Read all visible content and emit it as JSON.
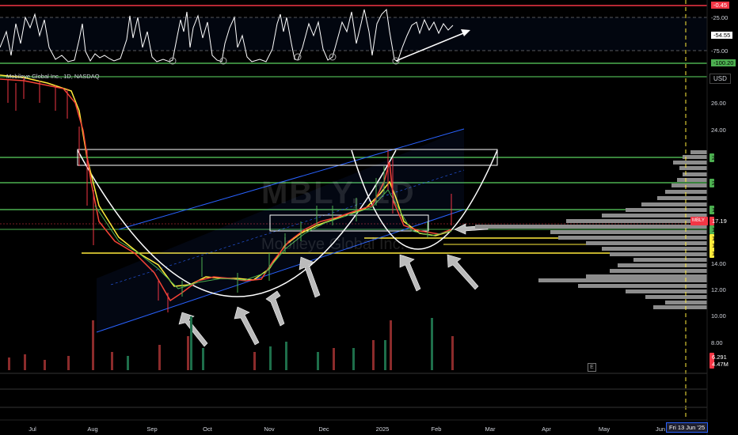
{
  "symbol_line": "Mobileye Global Inc., 1D, NASDAQ",
  "currency": "USD",
  "watermark": {
    "ticker": "MBLY, 1D",
    "name": "Mobileye Global Inc."
  },
  "oscillator": {
    "labels": [
      "-0.45",
      "-25.00",
      "-54.55",
      "-75.00",
      "-100.20"
    ]
  },
  "price_axis": [
    "26.00",
    "24.00",
    "22.00",
    "20.00",
    "18.00",
    "16.00",
    "14.00",
    "12.00",
    "10.00",
    "8.00",
    "6.00"
  ],
  "price_tags": [
    {
      "text": "22.00",
      "bg": "#4caf50",
      "fg": "#000"
    },
    {
      "text": "20.03",
      "bg": "#4caf50",
      "fg": "#000"
    },
    {
      "text": "18.00",
      "bg": "#4caf50",
      "fg": "#000"
    },
    {
      "text": "17.19",
      "bg": "#f23645",
      "fg": "#fff",
      "prefix": "MBLY"
    },
    {
      "text": "16.73",
      "bg": "#4caf50",
      "fg": "#000"
    },
    {
      "text": "16.45",
      "bg": "#ffeb3b",
      "fg": "#000"
    },
    {
      "text": "15.75",
      "bg": "#ffeb3b",
      "fg": "#000"
    },
    {
      "text": "14.77",
      "bg": "#ffeb3b",
      "fg": "#000"
    },
    {
      "text": "6.291",
      "bg": "#f23645",
      "fg": "#fff"
    },
    {
      "text": "4.47M",
      "bg": "#f23645",
      "fg": "#fff"
    }
  ],
  "time_axis": [
    "Jul",
    "Aug",
    "Sep",
    "Oct",
    "Nov",
    "Dec",
    "2025",
    "Feb",
    "Mar",
    "Apr",
    "May",
    "Jun"
  ],
  "cursor_date": "Fri 13 Jun '25",
  "earnings_marker": "E",
  "colors": {
    "bg": "#000000",
    "green_line": "#4caf50",
    "yellow_line": "#ffeb3b",
    "red_line": "#f23645",
    "channel": "#2962ff",
    "ema_fast": "#f44336",
    "ema_slow": "#ffeb3b",
    "ema_mid": "#4caf50"
  }
}
